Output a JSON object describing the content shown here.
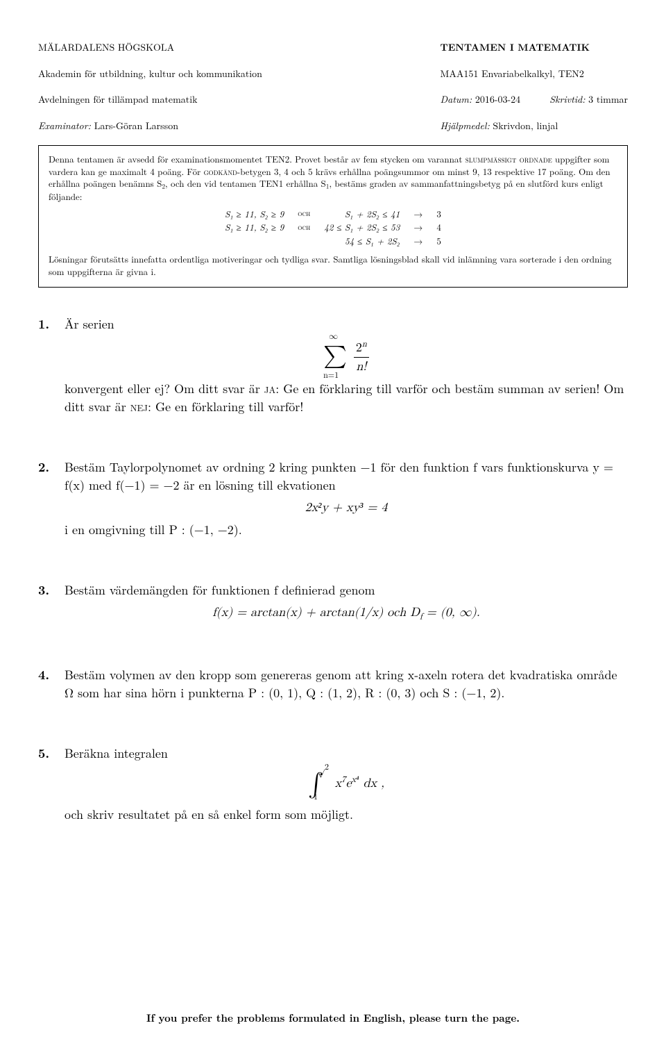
{
  "header": {
    "left": {
      "l1": "MÄLARDALENS HÖGSKOLA",
      "l2": "Akademin för utbildning, kultur och kommunikation",
      "l3": "Avdelningen för tillämpad matematik",
      "l4_label": "Examinator:",
      "l4_value": " Lars-Göran Larsson"
    },
    "right": {
      "r1": "TENTAMEN I MATEMATIK",
      "r2": "MAA151 Envariabelkalkyl,   TEN2",
      "r3_label": "Datum:",
      "r3_value": " 2016-03-24",
      "r3b_label": "Skrivtid:",
      "r3b_value": " 3 timmar",
      "r4_label": "Hjälpmedel:",
      "r4_value": " Skrivdon, linjal"
    }
  },
  "rules": {
    "p1a": "Denna tentamen är avsedd för examinationsmomentet TEN2. Provet består av fem stycken om varannat ",
    "p1b": "slumpmässigt ordnade",
    "p1c": " uppgifter som vardera kan ge maximalt 4 poäng. För ",
    "p1d": "godkänd",
    "p1e": "-betygen 3, 4 och 5 krävs erhållna poängsummor om minst 9, 13 respektive 17 poäng. Om den erhållna poängen benämns S",
    "p1f": ", och den vid tentamen TEN1 erhållna S",
    "p1g": ", bestäms graden av sammanfattningsbetyg på en slutförd kurs enligt följande:",
    "grade": {
      "r1c1": "S₁ ≥ 11, S₂ ≥ 9",
      "och": "och",
      "r1c3": "S₁ + 2S₂ ≤ 41",
      "arrow": "→",
      "r1c5": "3",
      "r2c1": "S₁ ≥ 11, S₂ ≥ 9",
      "r2c3": "42 ≤ S₁ + 2S₂ ≤ 53",
      "r2c5": "4",
      "r3c3": "54 ≤ S₁ + 2S₂",
      "r3c5": "5"
    },
    "p2": "Lösningar förutsätts innefatta ordentliga motiveringar och tydliga svar. Samtliga lösningsblad skall vid inlämning vara sorterade i den ordning som uppgifterna är givna i."
  },
  "problems": {
    "p1": {
      "num": "1.",
      "t1": "Är serien",
      "eq_top": "∞",
      "eq_bot": "n=1",
      "eq_numr": "2",
      "eq_numr_sup": "n",
      "eq_den": "n!",
      "t2a": "konvergent eller ej? Om ditt svar är ",
      "t2ja": "ja",
      "t2b": ": Ge en förklaring till varför och bestäm summan av serien! Om ditt svar är ",
      "t2nej": "nej",
      "t2c": ": Ge en förklaring till varför!"
    },
    "p2": {
      "num": "2.",
      "t1": "Bestäm Taylorpolynomet av ordning 2 kring punkten −1 för den funktion f vars funktionskurva y = f(x) med f(−1) = −2 är en lösning till ekvationen",
      "eq": "2x²y + xy³ = 4",
      "t2": "i en omgivning till P : (−1, −2)."
    },
    "p3": {
      "num": "3.",
      "t1": "Bestäm värdemängden för funktionen f definierad genom",
      "eq": "f(x) = arctan(x) + arctan(1/x)   och   D",
      "eq_sub": "f",
      "eq2": " = (0, ∞)."
    },
    "p4": {
      "num": "4.",
      "t1": "Bestäm volymen av den kropp som genereras genom att kring x-axeln rotera det kvadratiska område Ω som har sina hörn i punkterna P : (0, 1), Q : (1, 2), R : (0, 3) och S : (−1, 2)."
    },
    "p5": {
      "num": "5.",
      "t1": "Beräkna integralen",
      "int_top": "√2",
      "int_bot": "1",
      "integrand_a": "x",
      "integrand_a_sup": "7",
      "integrand_b": "e",
      "integrand_b_sup": "x⁴",
      "integrand_dx": " dx ,",
      "t2": "och skriv resultatet på en så enkel form som möjligt."
    }
  },
  "footer": "If you prefer the problems formulated in English, please turn the page."
}
